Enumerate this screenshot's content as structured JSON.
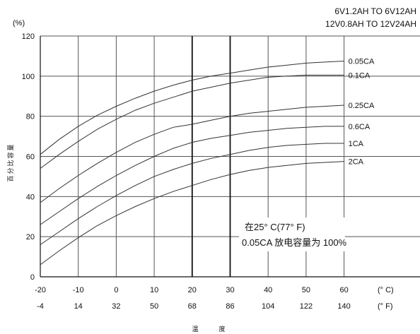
{
  "chart_data": {
    "type": "line",
    "header_lines": [
      "6V1.2AH TO 6V12AH",
      "12V0.8AH TO 12V24AH"
    ],
    "ylabel": "百分比容量",
    "yunit": "(%)",
    "xlabel": "温　度",
    "xunit_c": "(° C)",
    "xunit_f": "(° F)",
    "xlim": [
      -20,
      80
    ],
    "ylim": [
      0,
      120
    ],
    "x_ticks_c": [
      -20,
      -10,
      0,
      10,
      20,
      30,
      40,
      50,
      60
    ],
    "x_ticks_f": [
      -4,
      14,
      32,
      50,
      68,
      86,
      104,
      122,
      140
    ],
    "y_ticks": [
      0,
      20,
      40,
      60,
      80,
      100,
      120
    ],
    "grid": true,
    "annotation": [
      "在25° C(77° F)",
      "0.05CA 放电容量为 100%"
    ],
    "x": [
      -20,
      -15,
      -10,
      -5,
      0,
      5,
      10,
      15,
      20,
      25,
      30,
      35,
      40,
      45,
      50,
      55,
      60
    ],
    "series": [
      {
        "name": "0.05CA",
        "values": [
          61,
          68.5,
          75,
          80.5,
          85,
          89,
          92.5,
          95.5,
          98,
          100,
          101.5,
          103,
          104.5,
          105.5,
          106.5,
          107,
          107.5
        ]
      },
      {
        "name": "0.1CA",
        "values": [
          54,
          61,
          67.5,
          73.5,
          78.5,
          83,
          86.5,
          89.5,
          92.5,
          94.5,
          96.5,
          98,
          99.5,
          100,
          100.5,
          100.5,
          100.5
        ]
      },
      {
        "name": "0.25CA",
        "values": [
          37,
          44,
          50.5,
          56.5,
          62,
          67,
          71,
          74.5,
          76,
          78,
          80,
          81.5,
          82.5,
          83.5,
          84.5,
          85,
          85.5
        ]
      },
      {
        "name": "0.6CA",
        "values": [
          26,
          32.5,
          39,
          45,
          50.5,
          55.5,
          60,
          64,
          67,
          69,
          70.5,
          72,
          73,
          74,
          74.5,
          75,
          75
        ]
      },
      {
        "name": "1CA",
        "values": [
          16,
          22.5,
          29,
          35,
          40.5,
          45.5,
          50,
          53.5,
          56.5,
          59,
          61,
          63,
          64.5,
          65.5,
          66,
          66.5,
          66.5
        ]
      },
      {
        "name": "2CA",
        "values": [
          6,
          13,
          19.5,
          25.5,
          30.5,
          35,
          39,
          42.5,
          45.5,
          48.5,
          51,
          53,
          54.5,
          55.5,
          56.5,
          57,
          57.5
        ]
      }
    ]
  }
}
